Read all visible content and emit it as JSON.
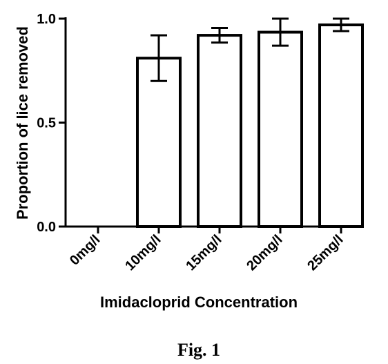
{
  "chart_data": {
    "type": "bar",
    "categories": [
      "0mg/l",
      "10mg/l",
      "15mg/l",
      "20mg/l",
      "25mg/l"
    ],
    "values": [
      0,
      0.81,
      0.92,
      0.935,
      0.97
    ],
    "error": [
      0,
      0.11,
      0.035,
      0.065,
      0.03
    ],
    "xlabel": "Imidacloprid Concentration",
    "ylabel": "Proportion of lice removed",
    "ylim": [
      0,
      1.0
    ],
    "yticks": [
      "0.0",
      "0.5",
      "1.0"
    ],
    "grid": false,
    "legend": "none"
  },
  "caption": "Fig. 1",
  "colors": {
    "bar_fill": "#ffffff",
    "stroke": "#000000",
    "background": "#ffffff"
  }
}
